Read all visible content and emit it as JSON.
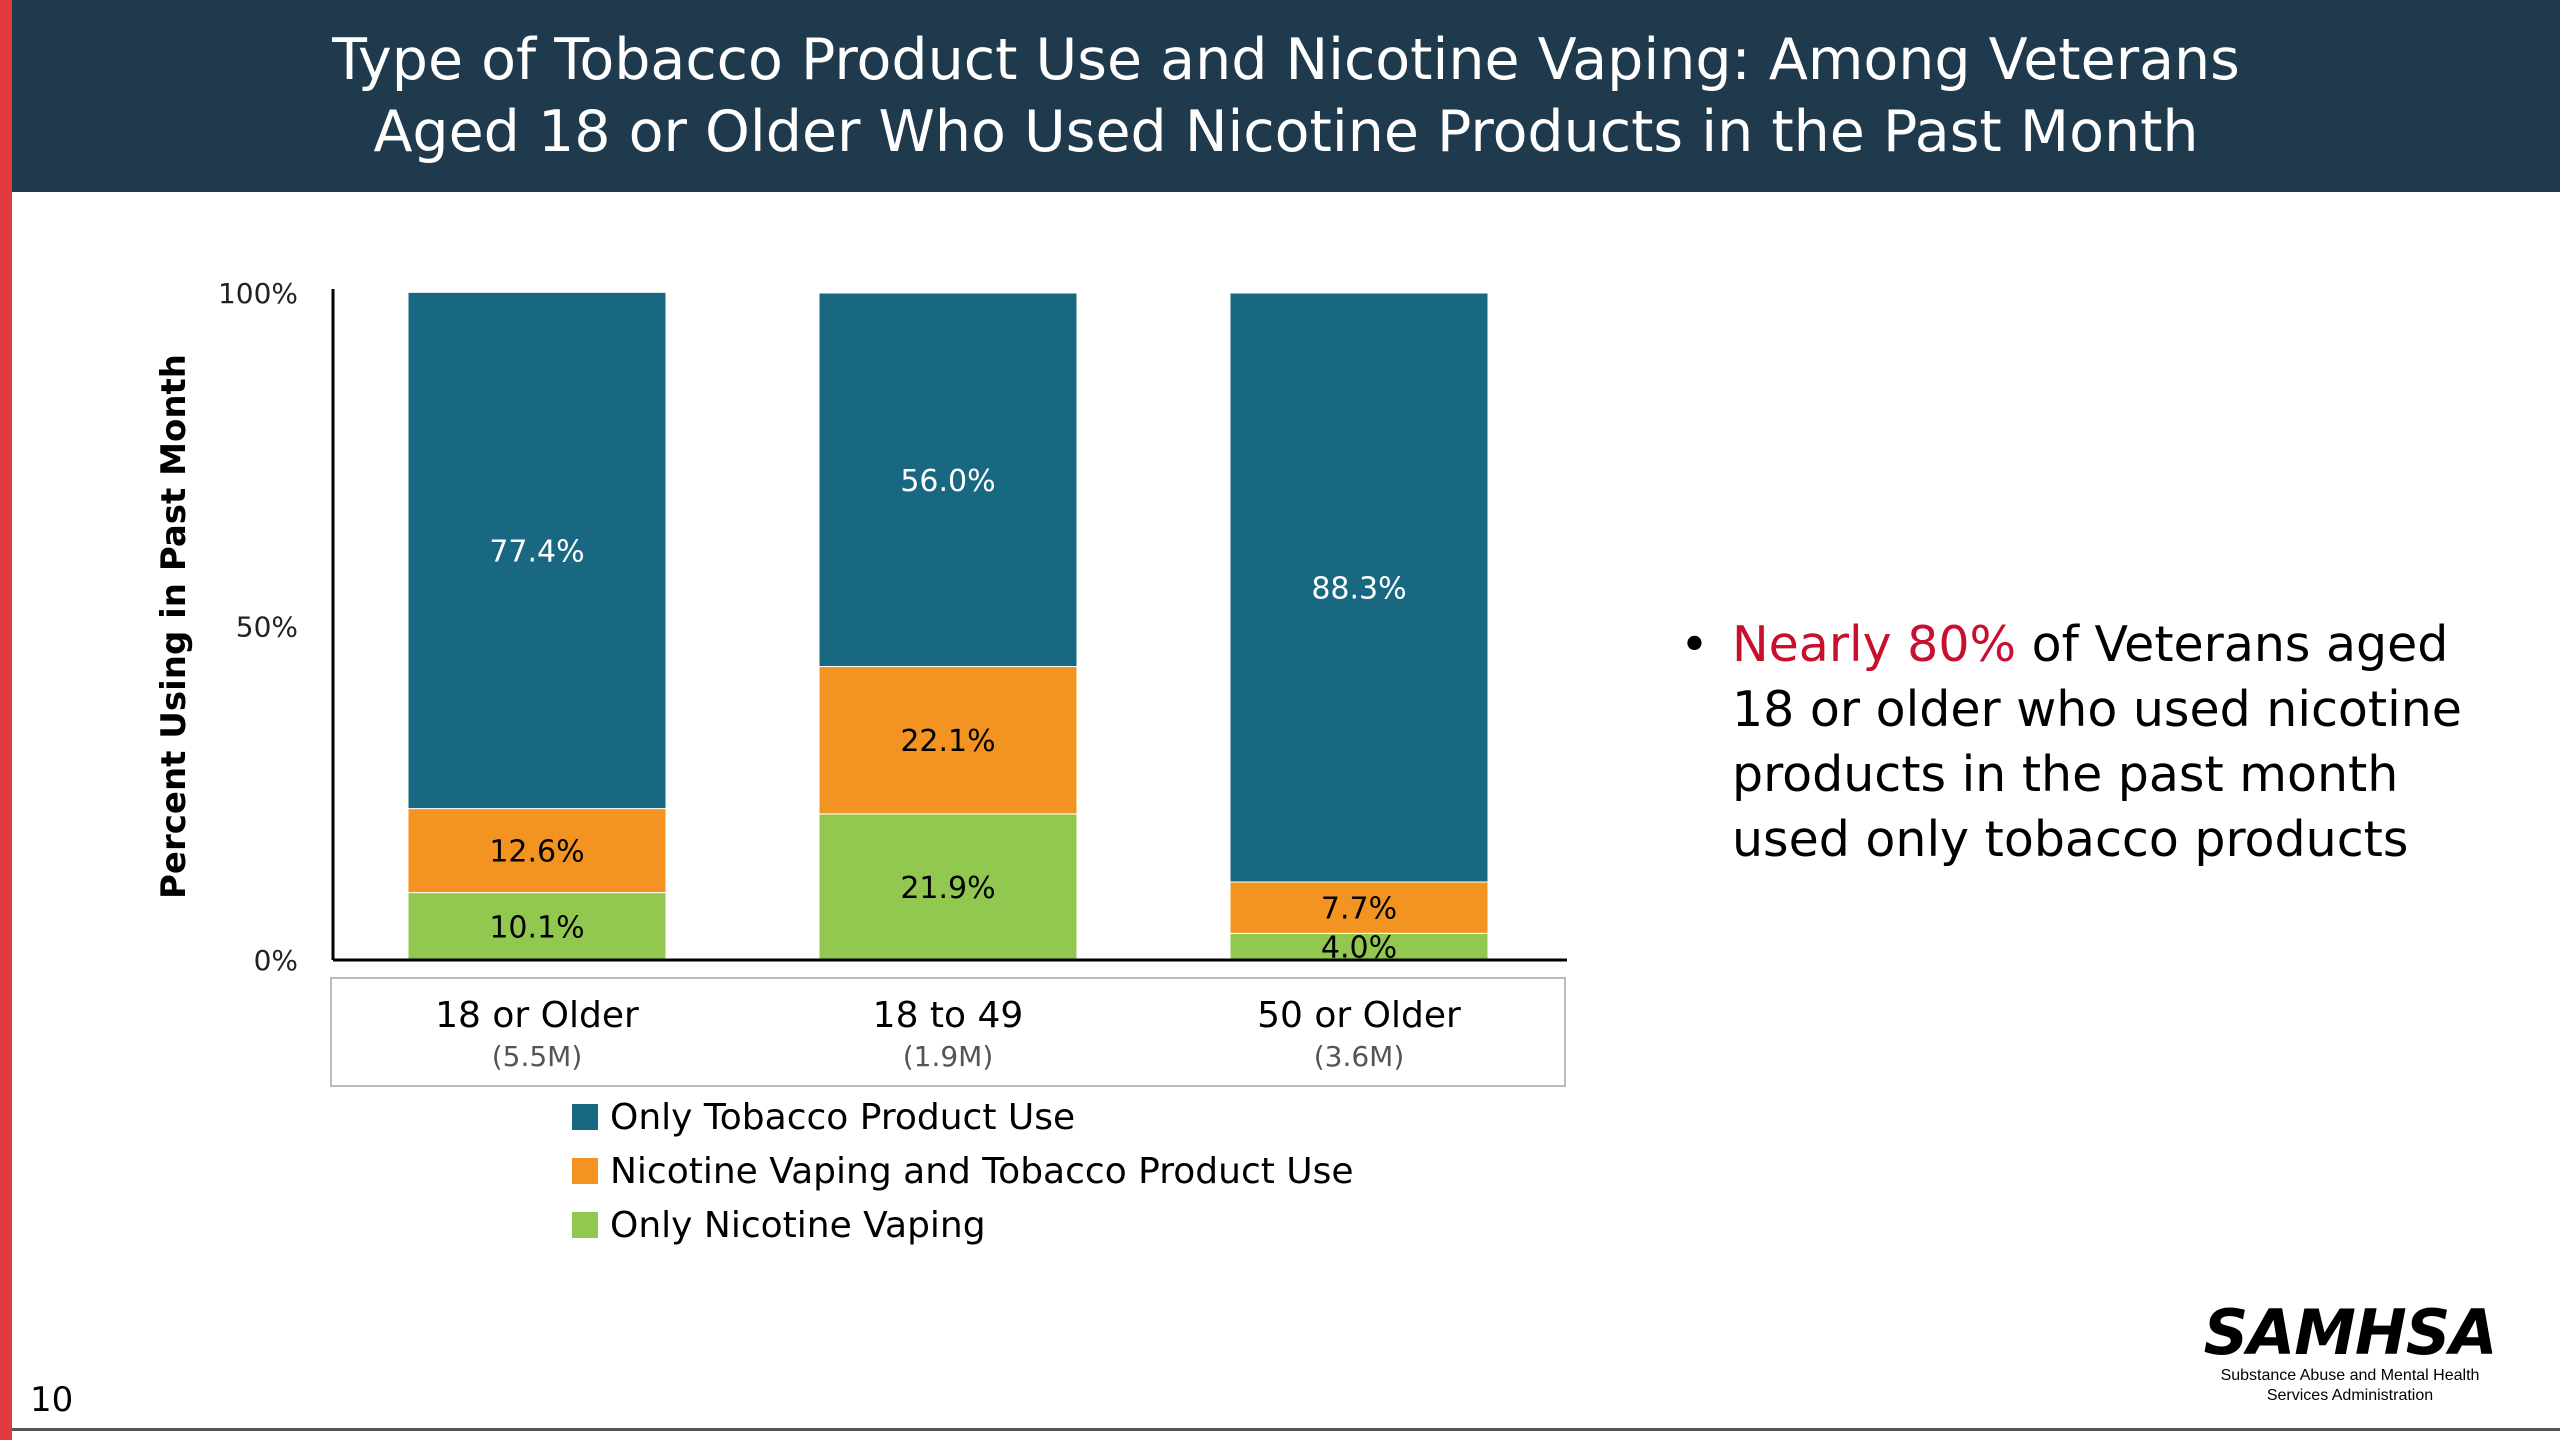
{
  "slide": {
    "title_line1": "Type of Tobacco Product Use and Nicotine Vaping: Among Veterans",
    "title_line2": "Aged 18 or Older Who Used Nicotine Products in the Past Month",
    "page_number": "10",
    "bullet": {
      "emphasis": "Nearly 80%",
      "text": " of Veterans aged 18 or older who used nicotine products in the past month used only tobacco products"
    },
    "logo": {
      "word": "SAMHSA",
      "subtitle_line1": "Substance Abuse and Mental Health",
      "subtitle_line2": "Services Administration"
    }
  },
  "chart_data": {
    "type": "bar",
    "stacked": true,
    "ylabel": "Percent Using in Past Month",
    "ylim": [
      0,
      100
    ],
    "yticks": [
      "0%",
      "50%",
      "100%"
    ],
    "categories": [
      "18 or Older",
      "18 to 49",
      "50 or Older"
    ],
    "category_sublabels": [
      "(5.5M)",
      "(1.9M)",
      "(3.6M)"
    ],
    "series": [
      {
        "name": "Only Nicotine Vaping",
        "color": "#92c84f",
        "values": [
          10.1,
          21.9,
          4.0
        ],
        "labels": [
          "10.1%",
          "21.9%",
          "4.0%"
        ]
      },
      {
        "name": "Nicotine Vaping and Tobacco Product Use",
        "color": "#f39322",
        "values": [
          12.6,
          22.1,
          7.7
        ],
        "labels": [
          "12.6%",
          "22.1%",
          "7.7%"
        ]
      },
      {
        "name": "Only Tobacco Product Use",
        "color": "#196882",
        "values": [
          77.4,
          56.0,
          88.3
        ],
        "labels": [
          "77.4%",
          "56.0%",
          "88.3%"
        ]
      }
    ],
    "legend_order": [
      "Only Tobacco Product Use",
      "Nicotine Vaping and Tobacco Product Use",
      "Only Nicotine Vaping"
    ],
    "legend_position": "bottom",
    "grid": false
  }
}
